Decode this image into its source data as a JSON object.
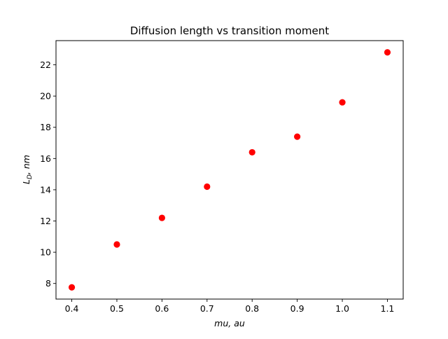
{
  "chart_data": {
    "type": "scatter",
    "title": "Diffusion length vs transition moment",
    "xlabel": "mu, au",
    "ylabel_main": "L",
    "ylabel_sub": "D",
    "ylabel_rest": ", nm",
    "xlim": [
      0.365,
      1.135
    ],
    "ylim": [
      7.0,
      23.55
    ],
    "xticks": [
      0.4,
      0.5,
      0.6,
      0.7,
      0.8,
      0.9,
      1.0,
      1.1
    ],
    "xtick_labels": [
      "0.4",
      "0.5",
      "0.6",
      "0.7",
      "0.8",
      "0.9",
      "1.0",
      "1.1"
    ],
    "yticks": [
      8,
      10,
      12,
      14,
      16,
      18,
      20,
      22
    ],
    "ytick_labels": [
      "8",
      "10",
      "12",
      "14",
      "16",
      "18",
      "20",
      "22"
    ],
    "grid": false,
    "marker_color": "#ff0000",
    "series": [
      {
        "x": [
          0.4,
          0.5,
          0.6,
          0.7,
          0.8,
          0.9,
          1.0,
          1.1
        ],
        "y": [
          7.75,
          10.5,
          12.2,
          14.2,
          16.4,
          17.4,
          19.6,
          22.8
        ]
      }
    ]
  }
}
